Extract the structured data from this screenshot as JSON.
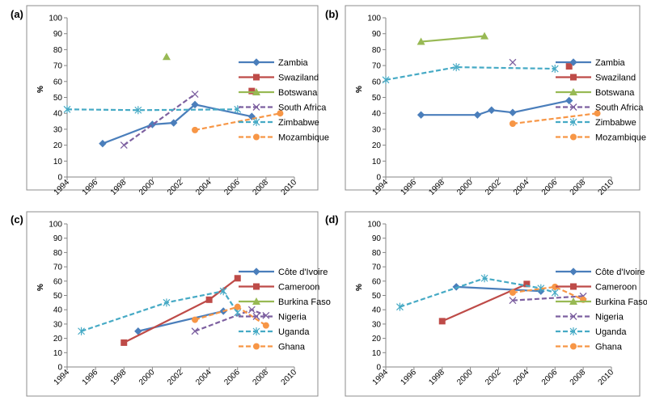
{
  "chart_data": [
    {
      "panel": "(a)",
      "type": "line",
      "ylabel": "%",
      "ylim": [
        0,
        100
      ],
      "yticks": [
        0,
        10,
        20,
        30,
        40,
        50,
        60,
        70,
        80,
        90,
        100
      ],
      "xlim": [
        1994,
        2010
      ],
      "xticks": [
        1994,
        1996,
        1998,
        2000,
        2002,
        2004,
        2006,
        2008,
        2010
      ],
      "grid": false,
      "legend_position": "right",
      "series": [
        {
          "name": "Zambia",
          "color": "#4a7ebb",
          "dashed": false,
          "marker": "diamond",
          "points": [
            [
              1996.5,
              21
            ],
            [
              2000,
              33
            ],
            [
              2001.5,
              34
            ],
            [
              2003,
              45.5
            ],
            [
              2007,
              38
            ]
          ]
        },
        {
          "name": "Swaziland",
          "color": "#be4b48",
          "dashed": false,
          "marker": "square",
          "points": [
            [
              2007,
              54
            ]
          ]
        },
        {
          "name": "Botswana",
          "color": "#98b954",
          "dashed": false,
          "marker": "triangle",
          "points": [
            [
              2001,
              75.5
            ]
          ]
        },
        {
          "name": "South Africa",
          "color": "#7d60a0",
          "dashed": true,
          "marker": "x",
          "points": [
            [
              1998,
              20
            ],
            [
              2003,
              52
            ]
          ]
        },
        {
          "name": "Zimbabwe",
          "color": "#46aac5",
          "dashed": true,
          "marker": "asterisk",
          "points": [
            [
              1994,
              42.5
            ],
            [
              1999,
              42
            ],
            [
              2006,
              42.5
            ]
          ]
        },
        {
          "name": "Mozambique",
          "color": "#f79646",
          "dashed": true,
          "marker": "circle",
          "points": [
            [
              2003,
              29.5
            ],
            [
              2009,
              40
            ]
          ]
        }
      ]
    },
    {
      "panel": "(b)",
      "type": "line",
      "ylabel": "%",
      "ylim": [
        0,
        100
      ],
      "yticks": [
        0,
        10,
        20,
        30,
        40,
        50,
        60,
        70,
        80,
        90,
        100
      ],
      "xlim": [
        1994,
        2010
      ],
      "xticks": [
        1994,
        1996,
        1998,
        2000,
        2002,
        2004,
        2006,
        2008,
        2010
      ],
      "grid": false,
      "legend_position": "right",
      "series": [
        {
          "name": "Zambia",
          "color": "#4a7ebb",
          "dashed": false,
          "marker": "diamond",
          "points": [
            [
              1996.5,
              39
            ],
            [
              2000.5,
              39
            ],
            [
              2001.5,
              42
            ],
            [
              2003,
              40.5
            ],
            [
              2007,
              48
            ]
          ]
        },
        {
          "name": "Swaziland",
          "color": "#be4b48",
          "dashed": false,
          "marker": "square",
          "points": [
            [
              2007,
              69.5
            ]
          ]
        },
        {
          "name": "Botswana",
          "color": "#98b954",
          "dashed": false,
          "marker": "triangle",
          "points": [
            [
              1996.5,
              85
            ],
            [
              2001,
              88.5
            ]
          ]
        },
        {
          "name": "South Africa",
          "color": "#7d60a0",
          "dashed": true,
          "marker": "x",
          "points": [
            [
              2003,
              72
            ]
          ]
        },
        {
          "name": "Zimbabwe",
          "color": "#46aac5",
          "dashed": true,
          "marker": "asterisk",
          "points": [
            [
              1994,
              61
            ],
            [
              1999,
              69
            ],
            [
              2006,
              68
            ]
          ]
        },
        {
          "name": "Mozambique",
          "color": "#f79646",
          "dashed": true,
          "marker": "circle",
          "points": [
            [
              2003,
              33.5
            ],
            [
              2009,
              40
            ]
          ]
        }
      ]
    },
    {
      "panel": "(c)",
      "type": "line",
      "ylabel": "%",
      "ylim": [
        0,
        100
      ],
      "yticks": [
        0,
        10,
        20,
        30,
        40,
        50,
        60,
        70,
        80,
        90,
        100
      ],
      "xlim": [
        1994,
        2010
      ],
      "xticks": [
        1994,
        1996,
        1998,
        2000,
        2002,
        2004,
        2006,
        2008,
        2010
      ],
      "grid": false,
      "legend_position": "right",
      "series": [
        {
          "name": "Côte d'Ivoire",
          "color": "#4a7ebb",
          "dashed": false,
          "marker": "diamond",
          "points": [
            [
              1999,
              25
            ],
            [
              2005,
              39
            ]
          ]
        },
        {
          "name": "Cameroon",
          "color": "#be4b48",
          "dashed": false,
          "marker": "square",
          "points": [
            [
              1998,
              17
            ],
            [
              2004,
              47
            ],
            [
              2006,
              62
            ]
          ]
        },
        {
          "name": "Burkina Faso",
          "color": "#98b954",
          "dashed": false,
          "marker": "triangle",
          "points": []
        },
        {
          "name": "Nigeria",
          "color": "#7d60a0",
          "dashed": true,
          "marker": "x",
          "points": [
            [
              2003,
              25
            ],
            [
              2007,
              40
            ],
            [
              2008,
              36
            ]
          ]
        },
        {
          "name": "Uganda",
          "color": "#46aac5",
          "dashed": true,
          "marker": "asterisk",
          "points": [
            [
              1995,
              25
            ],
            [
              2001,
              45
            ],
            [
              2005,
              53
            ],
            [
              2006,
              38
            ]
          ]
        },
        {
          "name": "Ghana",
          "color": "#f79646",
          "dashed": true,
          "marker": "circle",
          "points": [
            [
              2003,
              33
            ],
            [
              2006,
              42
            ],
            [
              2008,
              29
            ]
          ]
        }
      ]
    },
    {
      "panel": "(d)",
      "type": "line",
      "ylabel": "%",
      "ylim": [
        0,
        100
      ],
      "yticks": [
        0,
        10,
        20,
        30,
        40,
        50,
        60,
        70,
        80,
        90,
        100
      ],
      "xlim": [
        1994,
        2010
      ],
      "xticks": [
        1994,
        1996,
        1998,
        2000,
        2002,
        2004,
        2006,
        2008,
        2010
      ],
      "grid": false,
      "legend_position": "right",
      "series": [
        {
          "name": "Côte d'Ivoire",
          "color": "#4a7ebb",
          "dashed": false,
          "marker": "diamond",
          "points": [
            [
              1999,
              56
            ],
            [
              2005,
              53
            ]
          ]
        },
        {
          "name": "Cameroon",
          "color": "#be4b48",
          "dashed": false,
          "marker": "square",
          "points": [
            [
              1998,
              32
            ],
            [
              2004,
              58
            ]
          ]
        },
        {
          "name": "Burkina Faso",
          "color": "#98b954",
          "dashed": false,
          "marker": "triangle",
          "points": []
        },
        {
          "name": "Nigeria",
          "color": "#7d60a0",
          "dashed": true,
          "marker": "x",
          "points": [
            [
              2003,
              46.5
            ],
            [
              2008,
              49.5
            ]
          ]
        },
        {
          "name": "Uganda",
          "color": "#46aac5",
          "dashed": true,
          "marker": "asterisk",
          "points": [
            [
              1995,
              42
            ],
            [
              2001,
              62
            ],
            [
              2005,
              55
            ],
            [
              2006,
              52
            ]
          ]
        },
        {
          "name": "Ghana",
          "color": "#f79646",
          "dashed": true,
          "marker": "circle",
          "points": [
            [
              2003,
              52
            ],
            [
              2006,
              56
            ],
            [
              2008,
              47
            ]
          ]
        }
      ]
    }
  ]
}
